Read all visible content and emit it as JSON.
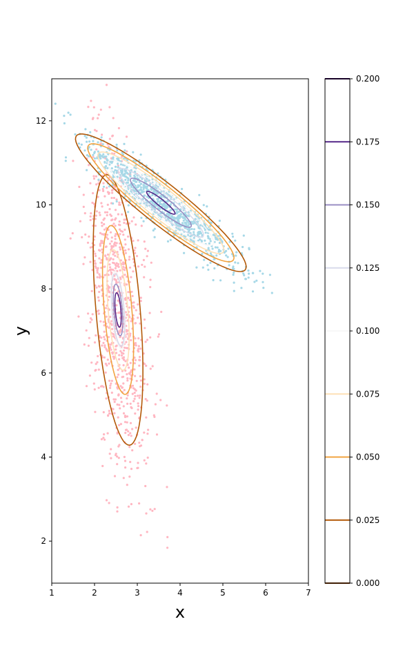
{
  "chart_data": {
    "type": "contour",
    "xlabel": "x",
    "ylabel": "y",
    "xlim": [
      1,
      7
    ],
    "ylim": [
      1,
      13
    ],
    "xticks": [
      "1",
      "2",
      "3",
      "4",
      "5",
      "6",
      "7"
    ],
    "yticks": [
      "2",
      "4",
      "6",
      "8",
      "10",
      "12"
    ],
    "colorbar": {
      "levels": [
        0.0,
        0.025,
        0.05,
        0.075,
        0.1,
        0.125,
        0.15,
        0.175,
        0.2
      ],
      "tick_labels": [
        "0.000",
        "0.025",
        "0.050",
        "0.075",
        "0.100",
        "0.125",
        "0.150",
        "0.175",
        "0.200"
      ],
      "level_colors": [
        "#7f3b08",
        "#b35806",
        "#f1a340",
        "#fee0b6",
        "#f7f7f7",
        "#d8daeb",
        "#998ec3",
        "#542788",
        "#2d004b"
      ]
    },
    "components": [
      {
        "name": "",
        "point_color": "#ffb6c1",
        "center": [
          2.55,
          7.5
        ],
        "std": [
          0.37,
          2.05
        ],
        "correlation": -0.45,
        "contour_half_widths": [
          1.57,
          0.98,
          0.7,
          0.45,
          0.42,
          0.3,
          0.2
        ]
      },
      {
        "name": "",
        "point_color": "#a6d8e7",
        "center": [
          3.55,
          10.05
        ],
        "std": [
          0.95,
          0.78
        ],
        "correlation": -0.93,
        "contour_half_widths": [
          2.1,
          1.8,
          1.55,
          1.3,
          1.05,
          0.75,
          0.35
        ]
      }
    ],
    "contour_levels": [
      0.025,
      0.05,
      0.075,
      0.1,
      0.125,
      0.15,
      0.175
    ]
  }
}
